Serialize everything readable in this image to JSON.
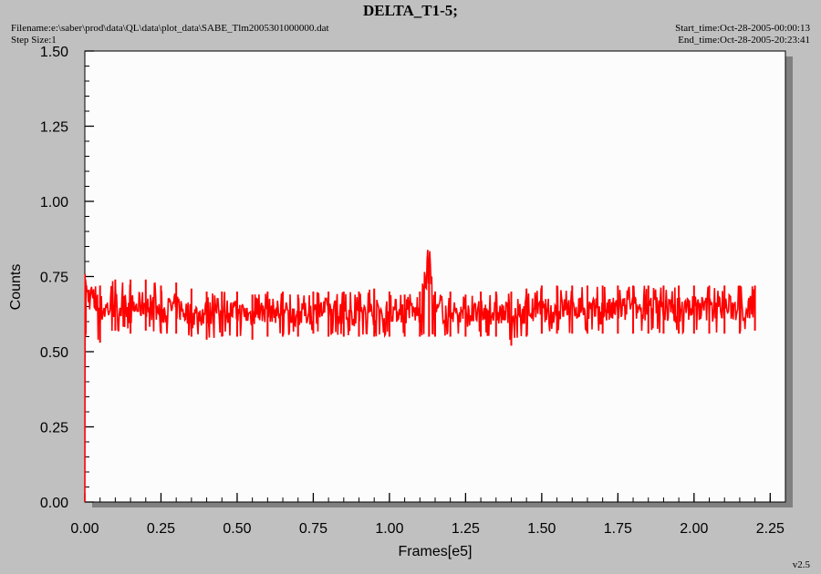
{
  "chart_data": {
    "type": "line",
    "title": "DELTA_T1-5;",
    "xlabel": "Frames[e5]",
    "ylabel": "Counts",
    "xlim": [
      0,
      2.3
    ],
    "ylim": [
      0,
      1.5
    ],
    "x_ticks": [
      "0.00",
      "0.25",
      "0.50",
      "0.75",
      "1.00",
      "1.25",
      "1.50",
      "1.75",
      "2.00",
      "2.25"
    ],
    "y_ticks": [
      "0.00",
      "0.25",
      "0.50",
      "0.75",
      "1.00",
      "1.25",
      "1.50"
    ],
    "series_color": "#ff0000",
    "series": [
      {
        "x": [
          0,
          0.001,
          0.002,
          0.003,
          0.05,
          0.1,
          0.15,
          0.2,
          0.25,
          0.3,
          0.35,
          0.4,
          0.45,
          0.5,
          0.55,
          0.6,
          0.65,
          0.7,
          0.75,
          0.8,
          0.85,
          0.9,
          0.95,
          1.0,
          1.05,
          1.1,
          1.13,
          1.15,
          1.2,
          1.25,
          1.3,
          1.35,
          1.4,
          1.45,
          1.5,
          1.55,
          1.6,
          1.65,
          1.7,
          1.75,
          1.8,
          1.85,
          1.9,
          1.95,
          2.0,
          2.05,
          2.1,
          2.15,
          2.2
        ],
        "y": [
          0.0,
          0.74,
          0.6,
          0.7,
          0.64,
          0.65,
          0.64,
          0.66,
          0.63,
          0.65,
          0.62,
          0.63,
          0.64,
          0.63,
          0.62,
          0.64,
          0.63,
          0.62,
          0.63,
          0.64,
          0.63,
          0.62,
          0.63,
          0.64,
          0.63,
          0.63,
          0.8,
          0.63,
          0.64,
          0.62,
          0.63,
          0.63,
          0.62,
          0.64,
          0.63,
          0.64,
          0.65,
          0.64,
          0.63,
          0.64,
          0.64,
          0.65,
          0.64,
          0.64,
          0.65,
          0.64,
          0.65,
          0.64,
          0.65
        ],
        "band_min": [
          0.0,
          0.74,
          0.55,
          0.56,
          0.53,
          0.57,
          0.56,
          0.57,
          0.56,
          0.56,
          0.55,
          0.54,
          0.55,
          0.55,
          0.54,
          0.55,
          0.55,
          0.55,
          0.56,
          0.55,
          0.55,
          0.55,
          0.55,
          0.55,
          0.55,
          0.55,
          0.55,
          0.55,
          0.55,
          0.55,
          0.55,
          0.55,
          0.52,
          0.55,
          0.56,
          0.56,
          0.56,
          0.56,
          0.56,
          0.56,
          0.56,
          0.56,
          0.56,
          0.56,
          0.56,
          0.56,
          0.56,
          0.56,
          0.57
        ],
        "band_max": [
          0.0,
          0.74,
          0.74,
          0.73,
          0.72,
          0.74,
          0.74,
          0.74,
          0.72,
          0.73,
          0.71,
          0.7,
          0.7,
          0.7,
          0.69,
          0.7,
          0.7,
          0.69,
          0.7,
          0.7,
          0.7,
          0.7,
          0.71,
          0.7,
          0.69,
          0.7,
          0.8,
          0.7,
          0.7,
          0.69,
          0.7,
          0.7,
          0.7,
          0.71,
          0.72,
          0.72,
          0.72,
          0.72,
          0.72,
          0.72,
          0.72,
          0.72,
          0.72,
          0.72,
          0.72,
          0.72,
          0.72,
          0.72,
          0.72
        ]
      }
    ]
  },
  "header": {
    "filename": "Filename:e:\\saber\\prod\\data\\QL\\data\\plot_data\\SABE_Tlm2005301000000.dat",
    "step_size": "Step Size:1",
    "start_time": "Start_time:Oct-28-2005-00:00:13",
    "end_time": "End_time:Oct-28-2005-20:23:41"
  },
  "footer": {
    "version": "v2.5"
  }
}
